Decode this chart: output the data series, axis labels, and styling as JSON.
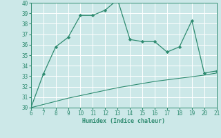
{
  "x": [
    6,
    7,
    8,
    9,
    10,
    11,
    12,
    13,
    14,
    15,
    16,
    17,
    18,
    19,
    20,
    21
  ],
  "y_main": [
    30.0,
    33.2,
    35.8,
    36.7,
    38.8,
    38.8,
    39.3,
    40.3,
    36.5,
    36.3,
    36.3,
    35.3,
    35.8,
    38.3,
    33.3,
    33.5
  ],
  "x_smooth": [
    6,
    7,
    8,
    9,
    10,
    11,
    12,
    13,
    14,
    15,
    16,
    17,
    18,
    19,
    20,
    21
  ],
  "y_smooth": [
    30.0,
    30.3,
    30.6,
    30.9,
    31.15,
    31.4,
    31.65,
    31.9,
    32.1,
    32.3,
    32.5,
    32.65,
    32.8,
    32.95,
    33.1,
    33.3
  ],
  "line_color": "#2e8b70",
  "bg_color": "#cce8e8",
  "grid_color": "#b0d0d0",
  "xlabel": "Humidex (Indice chaleur)",
  "ylim": [
    30,
    40
  ],
  "xlim": [
    6,
    21
  ],
  "yticks": [
    30,
    31,
    32,
    33,
    34,
    35,
    36,
    37,
    38,
    39,
    40
  ],
  "xticks": [
    6,
    7,
    8,
    9,
    10,
    11,
    12,
    13,
    14,
    15,
    16,
    17,
    18,
    19,
    20,
    21
  ]
}
